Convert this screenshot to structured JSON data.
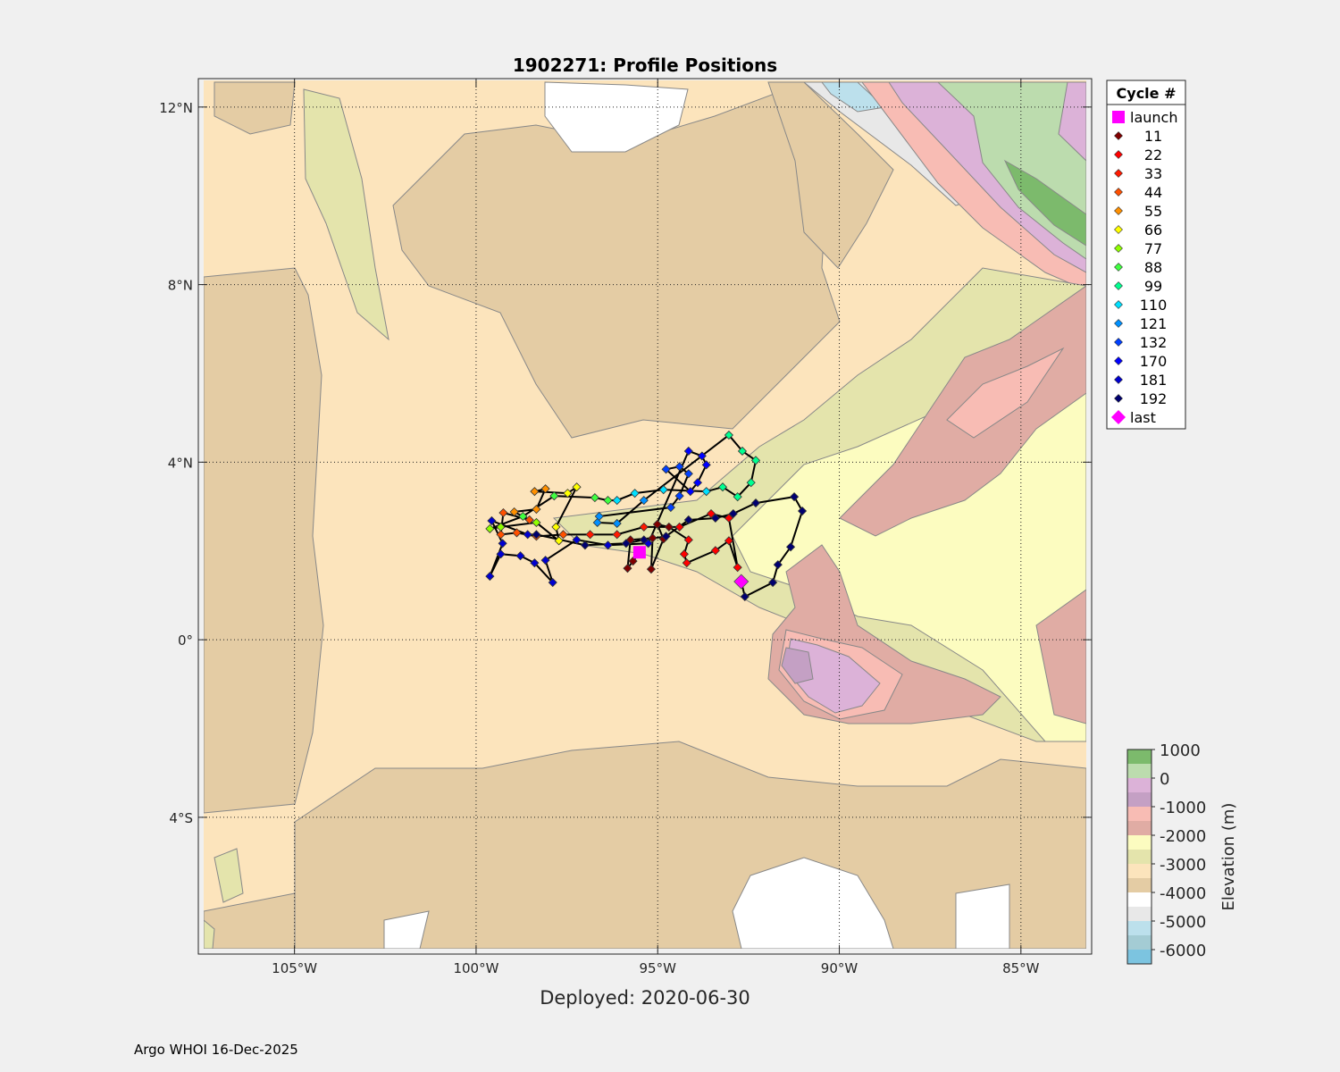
{
  "chart_data": {
    "type": "scatter",
    "subtype": "trajectory-map",
    "title": "1902271: Profile Positions",
    "xlabel": "Deployed: 2020-06-30",
    "xlim": [
      -107.5,
      -83.2
    ],
    "ylim": [
      -6.96,
      12.6
    ],
    "grid": true,
    "x_ticks": [
      {
        "value": -105,
        "label": "105°W"
      },
      {
        "value": -100,
        "label": "100°W"
      },
      {
        "value": -95,
        "label": "95°W"
      },
      {
        "value": -90,
        "label": "90°W"
      },
      {
        "value": -85,
        "label": "85°W"
      }
    ],
    "y_ticks": [
      {
        "value": 12,
        "label": "12°N"
      },
      {
        "value": 8,
        "label": "8°N"
      },
      {
        "value": 4,
        "label": "4°N"
      },
      {
        "value": 0,
        "label": "0°"
      },
      {
        "value": -4,
        "label": "4°S"
      }
    ],
    "legend": {
      "title": "Cycle #",
      "placement": "outside-top-right",
      "entries": [
        {
          "label": "launch",
          "color": "#ff00ff",
          "marker": "square"
        },
        {
          "label": "11",
          "color": "#800000",
          "marker": "diamond"
        },
        {
          "label": "22",
          "color": "#ff0000",
          "marker": "diamond"
        },
        {
          "label": "33",
          "color": "#ff1a00",
          "marker": "diamond"
        },
        {
          "label": "44",
          "color": "#ff5000",
          "marker": "diamond"
        },
        {
          "label": "55",
          "color": "#ff9000",
          "marker": "diamond"
        },
        {
          "label": "66",
          "color": "#ffff00",
          "marker": "diamond"
        },
        {
          "label": "77",
          "color": "#90ff00",
          "marker": "diamond"
        },
        {
          "label": "88",
          "color": "#40ff40",
          "marker": "diamond"
        },
        {
          "label": "99",
          "color": "#00ff90",
          "marker": "diamond"
        },
        {
          "label": "110",
          "color": "#00e0ff",
          "marker": "diamond"
        },
        {
          "label": "121",
          "color": "#0090ff",
          "marker": "diamond"
        },
        {
          "label": "132",
          "color": "#0040ff",
          "marker": "diamond"
        },
        {
          "label": "170",
          "color": "#0000ff",
          "marker": "diamond"
        },
        {
          "label": "181",
          "color": "#0000d0",
          "marker": "diamond"
        },
        {
          "label": "192",
          "color": "#000070",
          "marker": "diamond"
        },
        {
          "label": "last",
          "color": "#ff00ff",
          "marker": "big-diamond"
        }
      ]
    },
    "launch": [
      -95.5,
      1.97
    ],
    "last": [
      -92.7,
      1.31
    ],
    "track_groups": [
      {
        "cycle": "11",
        "points": [
          [
            -95.5,
            1.97
          ],
          [
            -95.68,
            1.77
          ],
          [
            -95.83,
            1.61
          ],
          [
            -95.75,
            2.25
          ],
          [
            -95.14,
            2.29
          ],
          [
            -95.18,
            1.59
          ],
          [
            -94.84,
            2.27
          ],
          [
            -95.01,
            2.6
          ],
          [
            -94.69,
            2.54
          ]
        ]
      },
      {
        "cycle": "22",
        "points": [
          [
            -94.15,
            2.25
          ],
          [
            -94.27,
            1.93
          ],
          [
            -94.2,
            1.73
          ],
          [
            -93.41,
            2.01
          ],
          [
            -93.04,
            2.23
          ],
          [
            -92.8,
            1.63
          ],
          [
            -93.04,
            2.74
          ],
          [
            -93.53,
            2.84
          ],
          [
            -94.4,
            2.54
          ]
        ]
      },
      {
        "cycle": "33",
        "points": [
          [
            -95.38,
            2.54
          ],
          [
            -96.12,
            2.37
          ],
          [
            -96.86,
            2.37
          ]
        ]
      },
      {
        "cycle": "44",
        "points": [
          [
            -97.6,
            2.37
          ],
          [
            -98.34,
            2.33
          ],
          [
            -98.88,
            2.41
          ],
          [
            -99.32,
            2.37
          ],
          [
            -99.25,
            2.86
          ],
          [
            -98.53,
            2.7
          ]
        ]
      },
      {
        "cycle": "55",
        "points": [
          [
            -98.95,
            2.88
          ],
          [
            -98.34,
            2.94
          ],
          [
            -98.09,
            3.4
          ],
          [
            -98.39,
            3.34
          ]
        ]
      },
      {
        "cycle": "66",
        "points": [
          [
            -97.48,
            3.3
          ],
          [
            -97.23,
            3.44
          ],
          [
            -97.8,
            2.54
          ],
          [
            -97.72,
            2.23
          ]
        ]
      },
      {
        "cycle": "77",
        "points": [
          [
            -98.34,
            2.64
          ],
          [
            -99.32,
            2.54
          ],
          [
            -99.62,
            2.5
          ]
        ]
      },
      {
        "cycle": "88",
        "points": [
          [
            -98.71,
            2.78
          ],
          [
            -97.85,
            3.24
          ],
          [
            -96.73,
            3.2
          ],
          [
            -96.37,
            3.14
          ]
        ]
      },
      {
        "cycle": "110",
        "points": [
          [
            -96.12,
            3.14
          ],
          [
            -95.63,
            3.3
          ],
          [
            -94.84,
            3.38
          ],
          [
            -93.66,
            3.34
          ]
        ]
      },
      {
        "cycle": "99",
        "points": [
          [
            -93.21,
            3.44
          ],
          [
            -92.8,
            3.22
          ],
          [
            -92.43,
            3.54
          ],
          [
            -92.3,
            4.04
          ],
          [
            -92.67,
            4.25
          ],
          [
            -93.04,
            4.61
          ]
        ]
      },
      {
        "cycle": "121",
        "points": [
          [
            -95.38,
            3.14
          ],
          [
            -96.12,
            2.62
          ],
          [
            -96.66,
            2.64
          ],
          [
            -96.61,
            2.78
          ]
        ]
      },
      {
        "cycle": "132",
        "points": [
          [
            -94.64,
            2.98
          ],
          [
            -94.4,
            3.24
          ],
          [
            -94.15,
            3.74
          ],
          [
            -94.4,
            3.9
          ],
          [
            -94.77,
            3.84
          ]
        ]
      },
      {
        "cycle": "170",
        "points": [
          [
            -94.1,
            3.34
          ],
          [
            -93.9,
            3.54
          ],
          [
            -93.66,
            3.94
          ],
          [
            -93.78,
            4.14
          ],
          [
            -94.15,
            4.25
          ]
        ]
      },
      {
        "cycle": "181",
        "points": [
          [
            -95.26,
            2.17
          ],
          [
            -96.37,
            2.13
          ],
          [
            -97.23,
            2.25
          ],
          [
            -98.09,
            1.79
          ],
          [
            -97.89,
            1.29
          ],
          [
            -98.39,
            1.73
          ],
          [
            -98.78,
            1.89
          ],
          [
            -99.32,
            1.93
          ],
          [
            -99.62,
            1.43
          ],
          [
            -99.27,
            2.17
          ],
          [
            -99.57,
            2.68
          ],
          [
            -98.58,
            2.37
          ]
        ]
      },
      {
        "cycle": "192",
        "points": [
          [
            -98.34,
            2.37
          ],
          [
            -97.0,
            2.13
          ],
          [
            -95.87,
            2.17
          ],
          [
            -95.38,
            2.25
          ],
          [
            -94.77,
            2.33
          ],
          [
            -94.15,
            2.7
          ],
          [
            -93.41,
            2.74
          ],
          [
            -92.92,
            2.84
          ],
          [
            -92.3,
            3.08
          ],
          [
            -91.24,
            3.22
          ],
          [
            -91.02,
            2.9
          ],
          [
            -91.34,
            2.09
          ],
          [
            -91.69,
            1.69
          ],
          [
            -91.83,
            1.29
          ],
          [
            -92.6,
            0.97
          ],
          [
            -92.7,
            1.31
          ]
        ]
      }
    ],
    "colorbar": {
      "label": "Elevation (m)",
      "range": [
        -6500,
        1000
      ],
      "ticks": [
        {
          "value": 1000,
          "label": "1000"
        },
        {
          "value": 0,
          "label": "0"
        },
        {
          "value": -1000,
          "label": "-1000"
        },
        {
          "value": -2000,
          "label": "-2000"
        },
        {
          "value": -3000,
          "label": "-3000"
        },
        {
          "value": -4000,
          "label": "-4000"
        },
        {
          "value": -5000,
          "label": "-5000"
        },
        {
          "value": -6000,
          "label": "-6000"
        }
      ],
      "bands": [
        "#7cba6c",
        "#bcdcae",
        "#dcb2d8",
        "#c4a0c4",
        "#f8bcb4",
        "#e0aca4",
        "#fcfcc0",
        "#e4e4ac",
        "#fce4bc",
        "#e4cca4",
        "#ffffff",
        "#e8e8e8",
        "#bce0ec",
        "#a4ccd4",
        "#7cc4e0"
      ]
    }
  },
  "footer": "Argo WHOI 16-Dec-2025"
}
